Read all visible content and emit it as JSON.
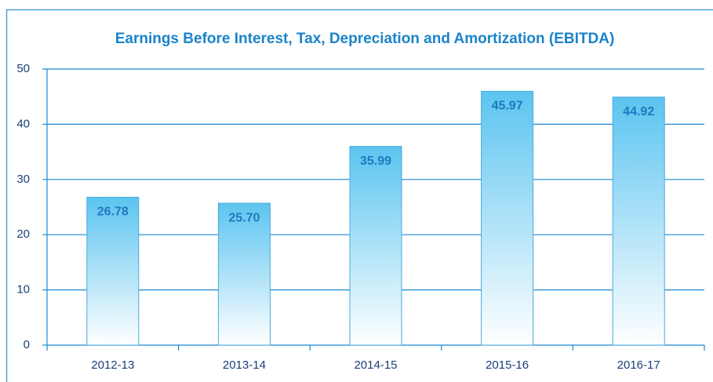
{
  "chart_data": {
    "type": "bar",
    "title": "Earnings Before Interest, Tax, Depreciation and Amortization (EBITDA)",
    "categories": [
      "2012-13",
      "2013-14",
      "2014-15",
      "2015-16",
      "2016-17"
    ],
    "values": [
      26.78,
      25.7,
      35.99,
      45.97,
      44.92
    ],
    "value_labels": [
      "26.78",
      "25.70",
      "35.99",
      "45.97",
      "44.92"
    ],
    "color": "#5bc4f0",
    "ylim": [
      0,
      50
    ],
    "yticks": [
      0,
      10,
      20,
      30,
      40,
      50
    ],
    "grid": true
  }
}
